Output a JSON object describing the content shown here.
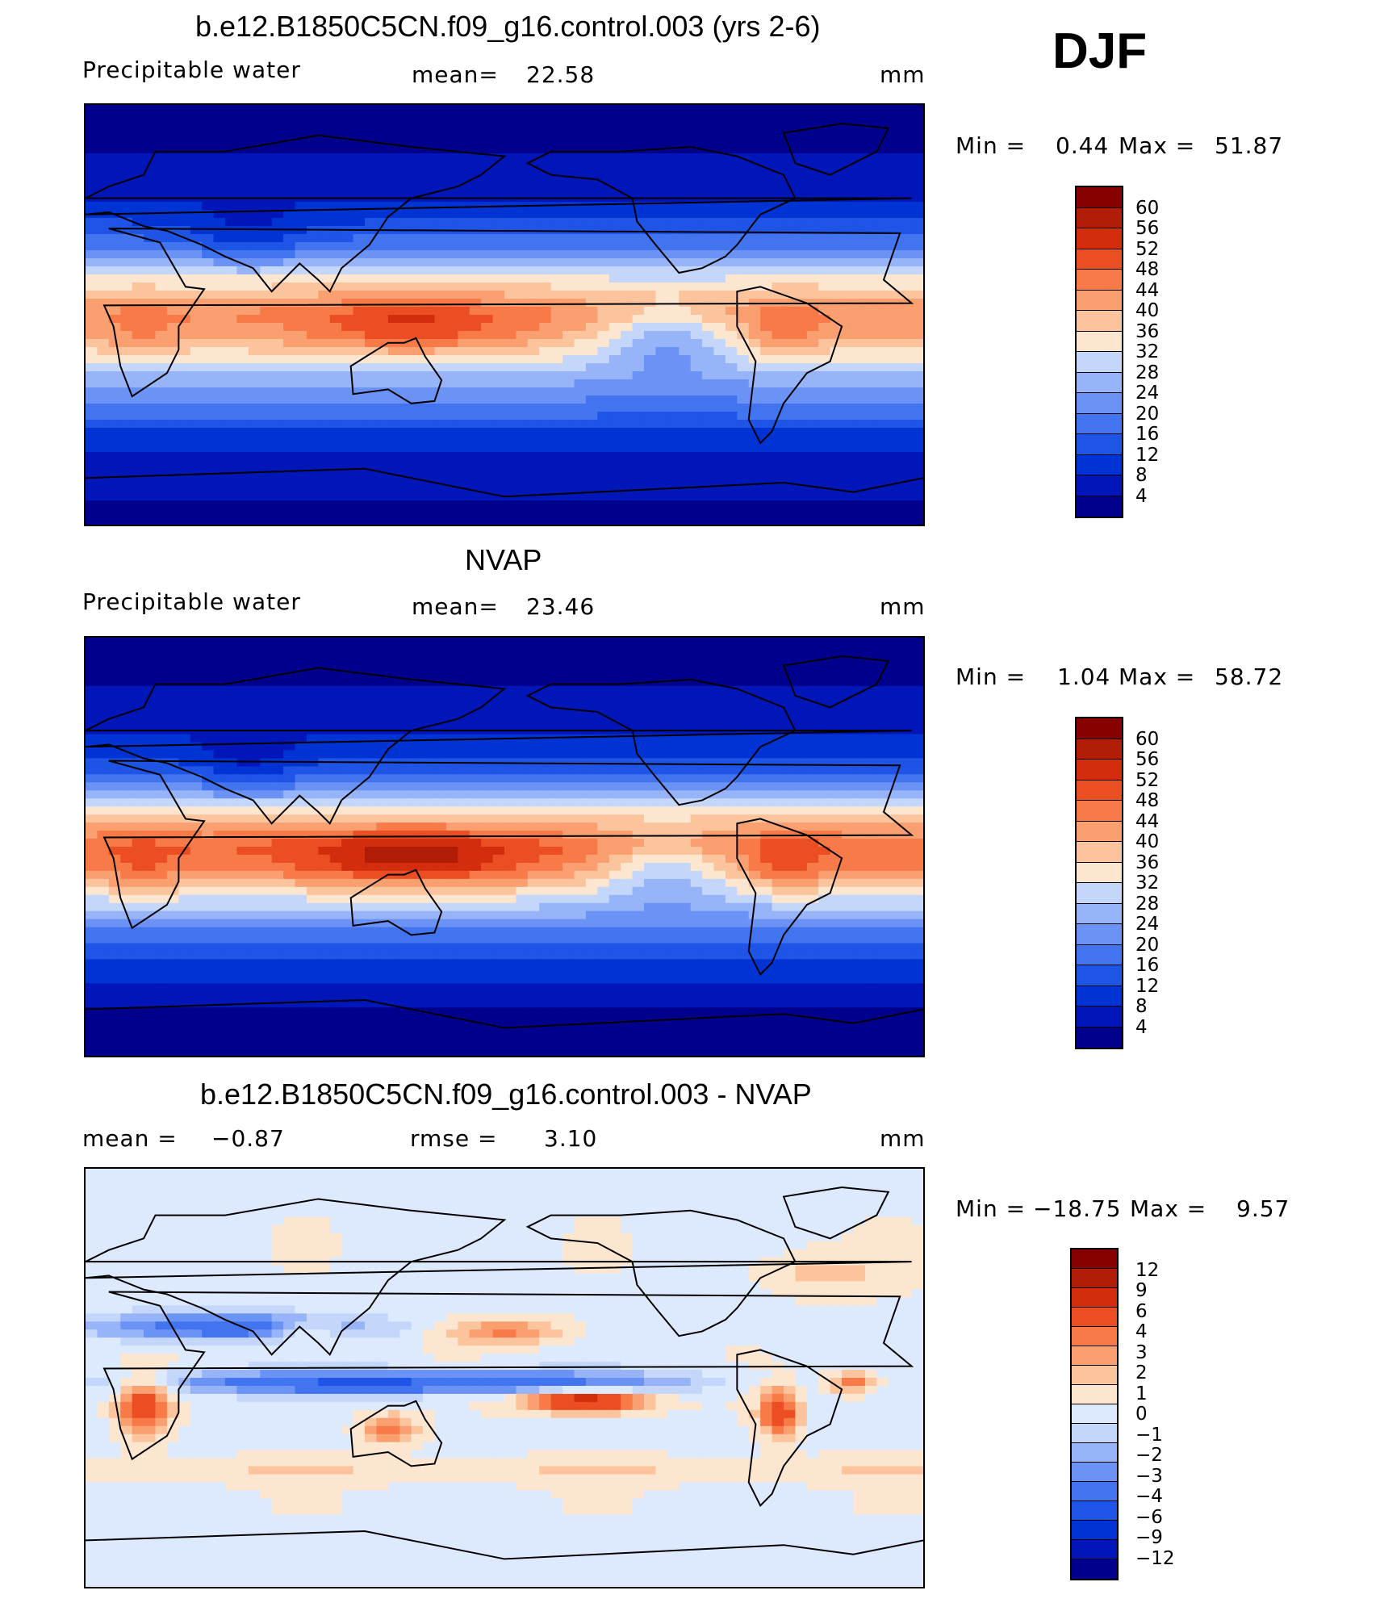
{
  "season": "DJF",
  "colors": {
    "abs_scale": [
      "#00008c",
      "#0016b8",
      "#0033d4",
      "#1f55e6",
      "#4274f0",
      "#6b93f5",
      "#97b4f8",
      "#c4d7fb",
      "#fde6d0",
      "#fcc49c",
      "#fa9f70",
      "#f77a48",
      "#eb4e22",
      "#d42d0e",
      "#b01c06",
      "#870000"
    ],
    "diff_scale": [
      "#00008c",
      "#0016b8",
      "#0033d4",
      "#1f55e6",
      "#4274f0",
      "#6b93f5",
      "#97b4f8",
      "#c4d7fb",
      "#dde9fd",
      "#fde6d0",
      "#fcc49c",
      "#fa9f70",
      "#f77a48",
      "#eb4e22",
      "#d42d0e",
      "#b01c06",
      "#870000"
    ],
    "land_outline": "#000000"
  },
  "chart_data": [
    {
      "type": "heatmap",
      "title": "b.e12.B1850C5CN.f09_g16.control.003 (yrs 2-6)",
      "left_label": "Precipitable  water",
      "mean_label": "mean=",
      "mean_value": "22.58",
      "units": "mm",
      "min_label": "Min  =",
      "min_value": "0.44",
      "max_label": "Max  =",
      "max_value": "51.87",
      "levels": [
        "60",
        "56",
        "52",
        "48",
        "44",
        "40",
        "36",
        "32",
        "28",
        "24",
        "20",
        "16",
        "12",
        "8",
        "4"
      ],
      "lat_profile_pwat": [
        [
          -90,
          3
        ],
        [
          -70,
          5
        ],
        [
          -60,
          8
        ],
        [
          -50,
          12
        ],
        [
          -40,
          18
        ],
        [
          -30,
          24
        ],
        [
          -20,
          32
        ],
        [
          -10,
          40
        ],
        [
          0,
          44
        ],
        [
          10,
          38
        ],
        [
          20,
          28
        ],
        [
          30,
          18
        ],
        [
          40,
          12
        ],
        [
          50,
          8
        ],
        [
          60,
          6
        ],
        [
          70,
          4
        ],
        [
          90,
          2
        ]
      ]
    },
    {
      "type": "heatmap",
      "title": "NVAP",
      "left_label": "Precipitable  water",
      "mean_label": "mean=",
      "mean_value": "23.46",
      "units": "mm",
      "min_label": "Min  =",
      "min_value": "1.04",
      "max_label": "Max  =",
      "max_value": "58.72",
      "levels": [
        "60",
        "56",
        "52",
        "48",
        "44",
        "40",
        "36",
        "32",
        "28",
        "24",
        "20",
        "16",
        "12",
        "8",
        "4"
      ],
      "lat_profile_pwat": [
        [
          -90,
          2
        ],
        [
          -70,
          4
        ],
        [
          -60,
          7
        ],
        [
          -50,
          11
        ],
        [
          -40,
          17
        ],
        [
          -30,
          24
        ],
        [
          -20,
          34
        ],
        [
          -10,
          44
        ],
        [
          0,
          48
        ],
        [
          10,
          40
        ],
        [
          20,
          28
        ],
        [
          30,
          18
        ],
        [
          40,
          11
        ],
        [
          50,
          8
        ],
        [
          60,
          6
        ],
        [
          70,
          4
        ],
        [
          90,
          2
        ]
      ]
    },
    {
      "type": "heatmap",
      "title": "b.e12.B1850C5CN.f09_g16.control.003 - NVAP",
      "mean_label": "mean  =",
      "mean_value": "−0.87",
      "rmse_label": "rmse  =",
      "rmse_value": "3.10",
      "units": "mm",
      "min_label": "Min  =",
      "min_value": "−18.75",
      "max_label": "Max  =",
      "max_value": "9.57",
      "levels": [
        "12",
        "9",
        "6",
        "4",
        "3",
        "2",
        "1",
        "0",
        "−1",
        "−2",
        "−3",
        "−4",
        "−6",
        "−9",
        "−12"
      ]
    }
  ]
}
